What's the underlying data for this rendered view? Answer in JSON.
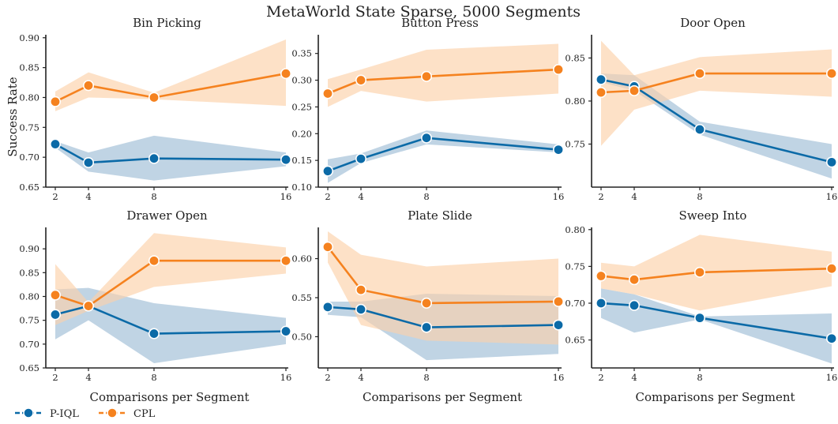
{
  "figure": {
    "suptitle": "MetaWorld State Sparse, 5000 Segments",
    "ylabel": "Success Rate",
    "xlabel": "Comparisons per Segment",
    "legend": [
      {
        "label": "P-IQL",
        "color": "#0b6aa7"
      },
      {
        "label": "CPL",
        "color": "#f5821f"
      }
    ],
    "band_colors": {
      "P-IQL": "#c7dced",
      "CPL": "#fddcbd"
    }
  },
  "chart_data": [
    {
      "type": "line",
      "title": "Bin Picking",
      "x": [
        2,
        4,
        8,
        16
      ],
      "x_ticks": [
        "2",
        "4",
        "8",
        "16"
      ],
      "ylim": [
        0.65,
        0.905
      ],
      "y_ticks": [
        0.65,
        0.7,
        0.75,
        0.8,
        0.85,
        0.9
      ],
      "y_tick_labels": [
        "0.65",
        "0.70",
        "0.75",
        "0.80",
        "0.85",
        "0.90"
      ],
      "series": [
        {
          "name": "P-IQL",
          "values": [
            0.722,
            0.691,
            0.698,
            0.696
          ],
          "lower": [
            0.716,
            0.676,
            0.661,
            0.685
          ],
          "upper": [
            0.727,
            0.708,
            0.736,
            0.708
          ]
        },
        {
          "name": "CPL",
          "values": [
            0.793,
            0.82,
            0.8,
            0.84
          ],
          "lower": [
            0.777,
            0.8,
            0.797,
            0.786
          ],
          "upper": [
            0.81,
            0.842,
            0.808,
            0.897
          ]
        }
      ]
    },
    {
      "type": "line",
      "title": "Button Press",
      "x": [
        2,
        4,
        8,
        16
      ],
      "x_ticks": [
        "2",
        "4",
        "8",
        "16"
      ],
      "ylim": [
        0.1,
        0.385
      ],
      "y_ticks": [
        0.1,
        0.15,
        0.2,
        0.25,
        0.3,
        0.35
      ],
      "y_tick_labels": [
        "0.10",
        "0.15",
        "0.20",
        "0.25",
        "0.30",
        "0.35"
      ],
      "series": [
        {
          "name": "P-IQL",
          "values": [
            0.13,
            0.153,
            0.192,
            0.17
          ],
          "lower": [
            0.108,
            0.145,
            0.18,
            0.165
          ],
          "upper": [
            0.152,
            0.163,
            0.206,
            0.18
          ]
        },
        {
          "name": "CPL",
          "values": [
            0.275,
            0.3,
            0.307,
            0.32
          ],
          "lower": [
            0.25,
            0.28,
            0.26,
            0.275
          ],
          "upper": [
            0.302,
            0.32,
            0.357,
            0.368
          ]
        }
      ]
    },
    {
      "type": "line",
      "title": "Door Open",
      "x": [
        2,
        4,
        8,
        16
      ],
      "x_ticks": [
        "2",
        "4",
        "8",
        "16"
      ],
      "ylim": [
        0.7,
        0.877
      ],
      "y_ticks": [
        0.75,
        0.8,
        0.85
      ],
      "y_tick_labels": [
        "0.75",
        "0.80",
        "0.85"
      ],
      "series": [
        {
          "name": "P-IQL",
          "values": [
            0.825,
            0.817,
            0.767,
            0.729
          ],
          "lower": [
            0.822,
            0.812,
            0.761,
            0.71
          ],
          "upper": [
            0.832,
            0.83,
            0.776,
            0.75
          ]
        },
        {
          "name": "CPL",
          "values": [
            0.81,
            0.812,
            0.832,
            0.832
          ],
          "lower": [
            0.748,
            0.79,
            0.812,
            0.805
          ],
          "upper": [
            0.87,
            0.83,
            0.851,
            0.86
          ]
        }
      ]
    },
    {
      "type": "line",
      "title": "Drawer Open",
      "x": [
        2,
        4,
        8,
        16
      ],
      "x_ticks": [
        "2",
        "4",
        "8",
        "16"
      ],
      "ylim": [
        0.65,
        0.945
      ],
      "y_ticks": [
        0.65,
        0.7,
        0.75,
        0.8,
        0.85,
        0.9
      ],
      "y_tick_labels": [
        "0.65",
        "0.70",
        "0.75",
        "0.80",
        "0.85",
        "0.90"
      ],
      "series": [
        {
          "name": "P-IQL",
          "values": [
            0.762,
            0.78,
            0.722,
            0.727
          ],
          "lower": [
            0.71,
            0.75,
            0.66,
            0.7
          ],
          "upper": [
            0.815,
            0.818,
            0.786,
            0.755
          ]
        },
        {
          "name": "CPL",
          "values": [
            0.803,
            0.78,
            0.875,
            0.875
          ],
          "lower": [
            0.74,
            0.77,
            0.82,
            0.848
          ],
          "upper": [
            0.868,
            0.788,
            0.933,
            0.903
          ]
        }
      ]
    },
    {
      "type": "line",
      "title": "Plate Slide",
      "x": [
        2,
        4,
        8,
        16
      ],
      "x_ticks": [
        "2",
        "4",
        "8",
        "16"
      ],
      "ylim": [
        0.46,
        0.64
      ],
      "y_ticks": [
        0.5,
        0.55,
        0.6
      ],
      "y_tick_labels": [
        "0.50",
        "0.55",
        "0.60"
      ],
      "series": [
        {
          "name": "P-IQL",
          "values": [
            0.538,
            0.535,
            0.512,
            0.515
          ],
          "lower": [
            0.528,
            0.525,
            0.47,
            0.478
          ],
          "upper": [
            0.545,
            0.545,
            0.555,
            0.552
          ]
        },
        {
          "name": "CPL",
          "values": [
            0.615,
            0.56,
            0.543,
            0.545
          ],
          "lower": [
            0.595,
            0.515,
            0.495,
            0.49
          ],
          "upper": [
            0.635,
            0.605,
            0.59,
            0.6
          ]
        }
      ]
    },
    {
      "type": "line",
      "title": "Sweep Into",
      "x": [
        2,
        4,
        8,
        16
      ],
      "x_ticks": [
        "2",
        "4",
        "8",
        "16"
      ],
      "ylim": [
        0.612,
        0.803
      ],
      "y_ticks": [
        0.65,
        0.7,
        0.75,
        0.8
      ],
      "y_tick_labels": [
        "0.65",
        "0.70",
        "0.75",
        "0.80"
      ],
      "series": [
        {
          "name": "P-IQL",
          "values": [
            0.7,
            0.697,
            0.68,
            0.652
          ],
          "lower": [
            0.68,
            0.66,
            0.678,
            0.618
          ],
          "upper": [
            0.72,
            0.712,
            0.682,
            0.686
          ]
        },
        {
          "name": "CPL",
          "values": [
            0.737,
            0.732,
            0.742,
            0.747
          ],
          "lower": [
            0.72,
            0.712,
            0.69,
            0.723
          ],
          "upper": [
            0.755,
            0.75,
            0.793,
            0.77
          ]
        }
      ]
    }
  ]
}
